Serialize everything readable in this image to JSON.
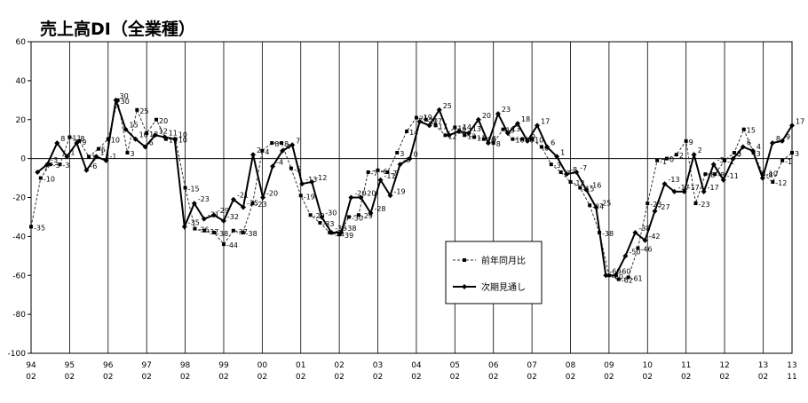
{
  "chart_data": {
    "type": "line",
    "title": "売上高DI（全業種）",
    "ylim": [
      -100,
      60
    ],
    "yticks": [
      -100,
      -80,
      -60,
      -40,
      -20,
      0,
      20,
      40,
      60
    ],
    "x_tick_labels": [
      {
        "year": "94",
        "month": "02"
      },
      {
        "year": "95",
        "month": "02"
      },
      {
        "year": "96",
        "month": "02"
      },
      {
        "year": "97",
        "month": "02"
      },
      {
        "year": "98",
        "month": "02"
      },
      {
        "year": "99",
        "month": "02"
      },
      {
        "year": "00",
        "month": "02"
      },
      {
        "year": "01",
        "month": "02"
      },
      {
        "year": "02",
        "month": "02"
      },
      {
        "year": "03",
        "month": "02"
      },
      {
        "year": "04",
        "month": "02"
      },
      {
        "year": "05",
        "month": "02"
      },
      {
        "year": "06",
        "month": "02"
      },
      {
        "year": "07",
        "month": "02"
      },
      {
        "year": "08",
        "month": "02"
      },
      {
        "year": "09",
        "month": "02"
      },
      {
        "year": "10",
        "month": "02"
      },
      {
        "year": "11",
        "month": "02"
      },
      {
        "year": "12",
        "month": "02"
      },
      {
        "year": "13",
        "month": "02"
      },
      {
        "year": "13",
        "month": "11"
      }
    ],
    "legend": {
      "position": "center-right",
      "entries": [
        "前年同月比",
        "次期見通し"
      ]
    },
    "series": [
      {
        "name": "前年同月比",
        "style": "dashed-square",
        "values": [
          -35,
          -10,
          -3,
          -3,
          11,
          9,
          1,
          5,
          10,
          30,
          3,
          25,
          13,
          20,
          10,
          10,
          -15,
          -36,
          -37,
          -38,
          -44,
          -37,
          -38,
          -23,
          4,
          8,
          8,
          -5,
          -19,
          -29,
          -33,
          -38,
          -39,
          -30,
          -29,
          -7,
          -6,
          -7,
          3,
          14,
          21,
          20,
          17,
          12,
          16,
          12,
          11,
          10,
          8,
          15,
          10,
          10,
          10,
          6,
          -3,
          -7,
          -12,
          -15,
          -24,
          -38,
          -60,
          -62,
          -61,
          -46,
          -23,
          -1,
          0,
          2,
          9,
          -23,
          -8,
          -8,
          -1,
          3,
          15,
          3,
          -8,
          -12,
          -1,
          3
        ]
      },
      {
        "name": "次期見通し",
        "style": "solid-diamond",
        "values": [
          -7,
          -3,
          8,
          1,
          8,
          -6,
          1,
          -1,
          30,
          15,
          10,
          6,
          12,
          11,
          10,
          -35,
          -23,
          -31,
          -29,
          -32,
          -21,
          -25,
          2,
          -20,
          -4,
          4,
          7,
          -13,
          -12,
          -30,
          -38,
          -38,
          -20,
          -20,
          -28,
          -11,
          -19,
          -3,
          0,
          19,
          17,
          25,
          12,
          14,
          13,
          20,
          8,
          23,
          13,
          18,
          9,
          17,
          6,
          1,
          -8,
          -7,
          -16,
          -25,
          -60,
          -60,
          -50,
          -38,
          -42,
          -27,
          -13,
          -17,
          -17,
          2,
          -17,
          -3,
          -11,
          0,
          6,
          4,
          -10,
          8,
          9,
          17
        ]
      }
    ],
    "labels_a": [
      "-35",
      "-10",
      "-3",
      "-3",
      "11",
      "9",
      "1",
      "5",
      "10",
      "30",
      "3",
      "25",
      "13",
      "20",
      "10",
      "10",
      "-15",
      "-36",
      "-37",
      "-38",
      "-44",
      "-37",
      "-38",
      "-23",
      "4",
      "8",
      "8",
      "-5",
      "-19",
      "-29",
      "-33",
      "-38",
      "-39",
      "-30",
      "-29",
      "-7",
      "-6",
      "-7",
      "3",
      "14",
      "21",
      "20",
      "17",
      "12",
      "16",
      "12",
      "11",
      "10",
      "8",
      "15",
      "10",
      "10",
      "10",
      "6",
      "-3",
      "-7",
      "-12",
      "-15",
      "-24",
      "-38",
      "-60",
      "-62",
      "-61",
      "-46",
      "-23",
      "-1",
      "0",
      "2",
      "9",
      "-23",
      "-8",
      "-8",
      "-1",
      "3",
      "15",
      "3",
      "-8",
      "-12",
      "-1",
      "3"
    ],
    "labels_b": [
      "-7",
      "-3",
      "8",
      "1",
      "8",
      "-6",
      "1",
      "-1",
      "30",
      "15",
      "10",
      "6",
      "12",
      "11",
      "10",
      "-35",
      "-23",
      "-31",
      "-29",
      "-32",
      "-21",
      "-25",
      "2",
      "-20",
      "-4",
      "4",
      "7",
      "-13",
      "-12",
      "-30",
      "-38",
      "-38",
      "-20",
      "-20",
      "-28",
      "-11",
      "-19",
      "-3",
      "0",
      "19",
      "17",
      "25",
      "12",
      "14",
      "13",
      "20",
      "8",
      "23",
      "13",
      "18",
      "9",
      "17",
      "6",
      "1",
      "-8",
      "-7",
      "-16",
      "-25",
      "-60",
      "-60",
      "-50",
      "-38",
      "-42",
      "-27",
      "-13",
      "-17",
      "-17",
      "2",
      "-17",
      "-3",
      "-11",
      "0",
      "6",
      "4",
      "-10",
      "8",
      "9",
      "17"
    ]
  }
}
